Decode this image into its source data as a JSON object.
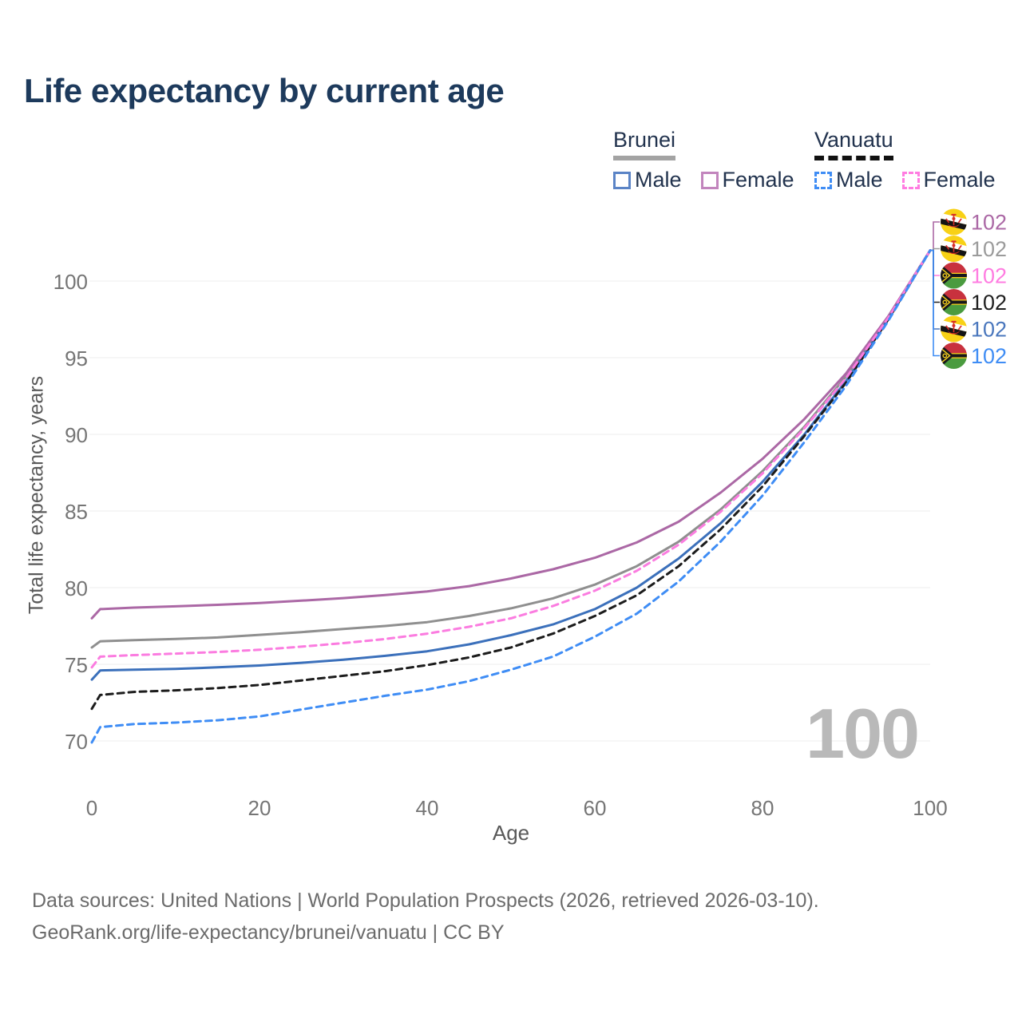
{
  "title": "Life expectancy by current age",
  "legend": {
    "groups": [
      {
        "name": "Brunei",
        "line_style": "solid",
        "underline_color": "#a3a3a3",
        "items": [
          {
            "label": "Male",
            "color": "#5b84c6",
            "dashed": false
          },
          {
            "label": "Female",
            "color": "#c285bd",
            "dashed": false
          }
        ]
      },
      {
        "name": "Vanuatu",
        "line_style": "dashed",
        "underline_color": "#111111",
        "items": [
          {
            "label": "Male",
            "color": "#3f8df5",
            "dashed": true
          },
          {
            "label": "Female",
            "color": "#ff7ce1",
            "dashed": true
          }
        ]
      }
    ]
  },
  "chart_data": {
    "type": "line",
    "title": "Life expectancy by current age",
    "xlabel": "Age",
    "ylabel": "Total life expectancy, years",
    "xticks": [
      0,
      20,
      40,
      60,
      80,
      100
    ],
    "yticks": [
      70,
      75,
      80,
      85,
      90,
      95,
      100
    ],
    "xlim": [
      0,
      100
    ],
    "ylim": [
      69,
      103
    ],
    "grid": "horizontal",
    "watermark": "100",
    "series": [
      {
        "id": "brunei",
        "name": "Brunei",
        "country": "Brunei",
        "sex": "Both",
        "color": "#8f8f8f",
        "dashed": false,
        "points": [
          [
            0,
            76.1
          ],
          [
            1,
            76.5
          ],
          [
            5,
            76.58
          ],
          [
            10,
            76.65
          ],
          [
            15,
            76.75
          ],
          [
            20,
            76.92
          ],
          [
            25,
            77.1
          ],
          [
            30,
            77.3
          ],
          [
            35,
            77.5
          ],
          [
            40,
            77.75
          ],
          [
            45,
            78.15
          ],
          [
            50,
            78.65
          ],
          [
            55,
            79.3
          ],
          [
            60,
            80.2
          ],
          [
            65,
            81.4
          ],
          [
            70,
            83.0
          ],
          [
            75,
            85.1
          ],
          [
            80,
            87.6
          ],
          [
            85,
            90.5
          ],
          [
            90,
            93.8
          ],
          [
            95,
            97.6
          ],
          [
            100,
            102
          ]
        ]
      },
      {
        "id": "brunei-female",
        "name": "Brunei Female",
        "country": "Brunei",
        "sex": "Female",
        "color": "#ab68a5",
        "dashed": false,
        "points": [
          [
            0,
            78.0
          ],
          [
            1,
            78.6
          ],
          [
            5,
            78.7
          ],
          [
            10,
            78.78
          ],
          [
            15,
            78.88
          ],
          [
            20,
            79.0
          ],
          [
            25,
            79.15
          ],
          [
            30,
            79.32
          ],
          [
            35,
            79.52
          ],
          [
            40,
            79.75
          ],
          [
            45,
            80.1
          ],
          [
            50,
            80.6
          ],
          [
            55,
            81.2
          ],
          [
            60,
            81.95
          ],
          [
            65,
            82.95
          ],
          [
            70,
            84.3
          ],
          [
            75,
            86.2
          ],
          [
            80,
            88.4
          ],
          [
            85,
            91.0
          ],
          [
            90,
            94.0
          ],
          [
            95,
            97.7
          ],
          [
            100,
            102
          ]
        ]
      },
      {
        "id": "brunei-male",
        "name": "Brunei Male",
        "country": "Brunei",
        "sex": "Male",
        "color": "#3b70bb",
        "dashed": false,
        "points": [
          [
            0,
            74.0
          ],
          [
            1,
            74.6
          ],
          [
            5,
            74.65
          ],
          [
            10,
            74.7
          ],
          [
            15,
            74.8
          ],
          [
            20,
            74.92
          ],
          [
            25,
            75.1
          ],
          [
            30,
            75.3
          ],
          [
            35,
            75.55
          ],
          [
            40,
            75.85
          ],
          [
            45,
            76.3
          ],
          [
            50,
            76.9
          ],
          [
            55,
            77.6
          ],
          [
            60,
            78.6
          ],
          [
            65,
            80.0
          ],
          [
            70,
            81.9
          ],
          [
            75,
            84.2
          ],
          [
            80,
            86.9
          ],
          [
            85,
            90.0
          ],
          [
            90,
            93.5
          ],
          [
            95,
            97.5
          ],
          [
            100,
            102
          ]
        ]
      },
      {
        "id": "vanuatu",
        "name": "Vanuatu",
        "country": "Vanuatu",
        "sex": "Both",
        "color": "#1c1c1c",
        "dashed": true,
        "points": [
          [
            0,
            72.1
          ],
          [
            1,
            73.0
          ],
          [
            5,
            73.2
          ],
          [
            10,
            73.3
          ],
          [
            15,
            73.45
          ],
          [
            20,
            73.65
          ],
          [
            25,
            73.95
          ],
          [
            30,
            74.25
          ],
          [
            35,
            74.55
          ],
          [
            40,
            74.95
          ],
          [
            45,
            75.45
          ],
          [
            50,
            76.1
          ],
          [
            55,
            77.0
          ],
          [
            60,
            78.15
          ],
          [
            65,
            79.5
          ],
          [
            70,
            81.4
          ],
          [
            75,
            83.8
          ],
          [
            80,
            86.6
          ],
          [
            85,
            89.9
          ],
          [
            90,
            93.4
          ],
          [
            95,
            97.5
          ],
          [
            100,
            102
          ]
        ]
      },
      {
        "id": "vanuatu-female",
        "name": "Vanuatu Female",
        "country": "Vanuatu",
        "sex": "Female",
        "color": "#fb7ce0",
        "dashed": true,
        "points": [
          [
            0,
            74.8
          ],
          [
            1,
            75.5
          ],
          [
            5,
            75.6
          ],
          [
            10,
            75.7
          ],
          [
            15,
            75.8
          ],
          [
            20,
            75.95
          ],
          [
            25,
            76.15
          ],
          [
            30,
            76.38
          ],
          [
            35,
            76.65
          ],
          [
            40,
            77.0
          ],
          [
            45,
            77.45
          ],
          [
            50,
            78.0
          ],
          [
            55,
            78.8
          ],
          [
            60,
            79.8
          ],
          [
            65,
            81.1
          ],
          [
            70,
            82.8
          ],
          [
            75,
            84.95
          ],
          [
            80,
            87.45
          ],
          [
            85,
            90.4
          ],
          [
            90,
            93.7
          ],
          [
            95,
            97.6
          ],
          [
            100,
            102
          ]
        ]
      },
      {
        "id": "vanuatu-male",
        "name": "Vanuatu Male",
        "country": "Vanuatu",
        "sex": "Male",
        "color": "#3f8df5",
        "dashed": true,
        "points": [
          [
            0,
            69.9
          ],
          [
            1,
            70.9
          ],
          [
            5,
            71.1
          ],
          [
            10,
            71.2
          ],
          [
            15,
            71.35
          ],
          [
            20,
            71.6
          ],
          [
            25,
            72.05
          ],
          [
            30,
            72.5
          ],
          [
            35,
            72.95
          ],
          [
            40,
            73.35
          ],
          [
            45,
            73.9
          ],
          [
            50,
            74.65
          ],
          [
            55,
            75.5
          ],
          [
            60,
            76.8
          ],
          [
            65,
            78.3
          ],
          [
            70,
            80.4
          ],
          [
            75,
            83.0
          ],
          [
            80,
            86.0
          ],
          [
            85,
            89.5
          ],
          [
            90,
            93.2
          ],
          [
            95,
            97.4
          ],
          [
            100,
            102
          ]
        ]
      }
    ],
    "end_age": 100,
    "end_value": 102,
    "annotations": [
      {
        "series": "Brunei Female",
        "flag": "brunei",
        "value": "102",
        "color": "#ab68a5"
      },
      {
        "series": "Brunei",
        "flag": "brunei",
        "value": "102",
        "color": "#9b9b9b"
      },
      {
        "series": "Vanuatu Female",
        "flag": "vanuatu",
        "value": "102",
        "color": "#ff7ce1"
      },
      {
        "series": "Vanuatu",
        "flag": "vanuatu",
        "value": "102",
        "color": "#1f1f1f"
      },
      {
        "series": "Brunei Male",
        "flag": "brunei",
        "value": "102",
        "color": "#4a77bd"
      },
      {
        "series": "Vanuatu Male",
        "flag": "vanuatu",
        "value": "102",
        "color": "#3f8df5"
      }
    ]
  },
  "footer": {
    "line1": "Data sources: United Nations | World Population Prospects (2026, retrieved 2026-03-10).",
    "line2": "GeoRank.org/life-expectancy/brunei/vanuatu | CC BY"
  }
}
